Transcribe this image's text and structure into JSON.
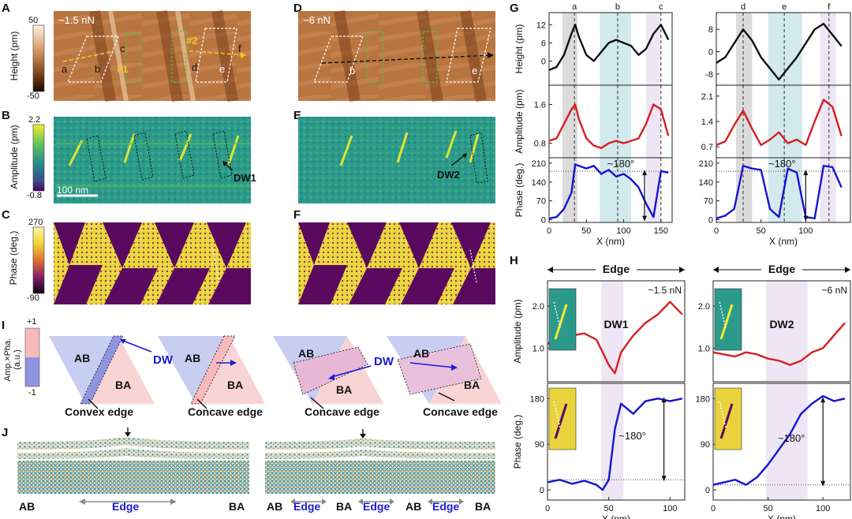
{
  "panels": {
    "A": "A",
    "B": "B",
    "C": "C",
    "D": "D",
    "E": "E",
    "F": "F",
    "G": "G",
    "H": "H",
    "I": "I",
    "J": "J"
  },
  "height_bar": {
    "title": "Height (pm)",
    "max": "50",
    "min": "-50"
  },
  "amplitude_bar": {
    "title": "Amplitude (pm)",
    "max": "2.2",
    "min": "-0.8"
  },
  "phase_bar": {
    "title": "Phase (deg.)",
    "max": "270",
    "min": "-90"
  },
  "afm": {
    "forceA": "~1.5 nN",
    "forceD": "~6 nN",
    "path1": "#1",
    "path2": "#2",
    "pts": {
      "a": "a",
      "b": "b",
      "c": "c",
      "d": "d",
      "e": "e",
      "f": "f"
    },
    "scale": "100 nm",
    "dw1": "DW1",
    "dw2": "DW2"
  },
  "schematic_I": {
    "ylabel": "Amp.×Pha. (a.u.)",
    "plus": "+1",
    "minus": "-1",
    "ab": "AB",
    "ba": "BA",
    "dw": "DW",
    "edges": [
      "Convex edge",
      "Concave edge",
      "Concave edge",
      "Concave edge"
    ]
  },
  "schematic_J": {
    "left": [
      "AB",
      "Edge",
      "BA"
    ],
    "right": [
      "AB",
      "Edge",
      "BA",
      "Edge",
      "AB",
      "Edge",
      "BA"
    ]
  },
  "chart_data": [
    {
      "type": "line",
      "panel": "G-left-height",
      "ylabel": "Height (pm)",
      "yticks": [
        "12",
        "6",
        "0"
      ],
      "top_labels": [
        "a",
        "b",
        "c"
      ],
      "x": [
        0,
        10,
        20,
        30,
        35,
        40,
        50,
        60,
        70,
        80,
        90,
        100,
        110,
        120,
        130,
        140,
        150,
        160
      ],
      "values": [
        -3,
        -2,
        2,
        9,
        12,
        8,
        2,
        0,
        3,
        6,
        7,
        6,
        5,
        2,
        4,
        9,
        12,
        7
      ]
    },
    {
      "type": "line",
      "panel": "G-left-amplitude",
      "ylabel": "Amplitude (pm)",
      "yticks": [
        "1.6",
        "0.8"
      ],
      "x": [
        0,
        10,
        20,
        30,
        35,
        40,
        50,
        60,
        70,
        80,
        90,
        100,
        110,
        120,
        130,
        140,
        150,
        160
      ],
      "values": [
        0.85,
        0.9,
        1.2,
        1.5,
        1.6,
        1.3,
        0.9,
        0.75,
        0.7,
        0.8,
        0.85,
        0.8,
        0.85,
        0.9,
        1.2,
        1.6,
        1.5,
        0.95
      ]
    },
    {
      "type": "line",
      "panel": "G-left-phase",
      "ylabel": "Phase (deg.)",
      "yticks": [
        "210",
        "140",
        "70",
        "0"
      ],
      "xlabel": "X (nm)",
      "xticks": [
        "0",
        "50",
        "100",
        "150"
      ],
      "annotation": "~180°",
      "x": [
        0,
        10,
        20,
        30,
        35,
        40,
        50,
        60,
        70,
        80,
        90,
        100,
        110,
        120,
        130,
        140,
        150,
        160
      ],
      "values": [
        5,
        10,
        40,
        100,
        205,
        200,
        190,
        200,
        170,
        185,
        160,
        170,
        150,
        120,
        60,
        10,
        180,
        175
      ]
    },
    {
      "type": "line",
      "panel": "G-right-height",
      "yticks": [
        "8",
        "0",
        "-8"
      ],
      "top_labels": [
        "d",
        "e",
        "f"
      ],
      "x": [
        0,
        10,
        20,
        30,
        40,
        50,
        60,
        70,
        80,
        90,
        100,
        110,
        120,
        130,
        140
      ],
      "values": [
        -4,
        -2,
        3,
        8,
        4,
        -2,
        -6,
        -10,
        -6,
        -2,
        3,
        8,
        10,
        6,
        2
      ]
    },
    {
      "type": "line",
      "panel": "G-right-amplitude",
      "yticks": [
        "2.1",
        "1.4",
        "0.7"
      ],
      "x": [
        0,
        10,
        20,
        30,
        40,
        50,
        60,
        70,
        80,
        90,
        100,
        110,
        120,
        130,
        140
      ],
      "values": [
        0.75,
        0.85,
        1.3,
        1.7,
        1.2,
        0.75,
        0.9,
        1.1,
        0.8,
        0.9,
        0.75,
        1.4,
        2.0,
        1.8,
        1.0
      ]
    },
    {
      "type": "line",
      "panel": "G-right-phase",
      "yticks": [
        "210",
        "140",
        "70",
        "0"
      ],
      "xlabel": "X (nm)",
      "xticks": [
        "0",
        "50",
        "100"
      ],
      "annotation": "~180°",
      "x": [
        0,
        10,
        20,
        30,
        40,
        50,
        60,
        70,
        80,
        90,
        100,
        110,
        120,
        130,
        140
      ],
      "values": [
        5,
        15,
        40,
        200,
        190,
        185,
        40,
        10,
        190,
        175,
        10,
        5,
        200,
        195,
        120
      ]
    },
    {
      "type": "line",
      "panel": "H-left-amplitude",
      "ylabel": "Amplitude (pm)",
      "yticks": [
        "2.0",
        "1.0"
      ],
      "header": "Edge",
      "force": "~1.5 nN",
      "region": "DW1",
      "x": [
        0,
        10,
        20,
        30,
        40,
        45,
        50,
        55,
        60,
        70,
        80,
        90,
        100,
        110
      ],
      "values": [
        1.1,
        1.25,
        1.3,
        1.35,
        1.2,
        0.9,
        0.6,
        0.4,
        0.9,
        1.3,
        1.6,
        1.8,
        2.1,
        1.8
      ]
    },
    {
      "type": "line",
      "panel": "H-left-phase",
      "ylabel": "Phase (deg.)",
      "yticks": [
        "180",
        "90",
        "0"
      ],
      "xlabel": "X (nm)",
      "xticks": [
        "0",
        "50",
        "100"
      ],
      "annotation": "~180°",
      "x": [
        0,
        10,
        20,
        30,
        40,
        45,
        50,
        55,
        60,
        70,
        80,
        90,
        100,
        110
      ],
      "values": [
        15,
        20,
        12,
        18,
        10,
        0,
        20,
        120,
        170,
        150,
        175,
        180,
        175,
        180
      ]
    },
    {
      "type": "line",
      "panel": "H-right-amplitude",
      "yticks": [
        "2.0",
        "1.0"
      ],
      "header": "Edge",
      "force": "~6 nN",
      "region": "DW2",
      "x": [
        0,
        10,
        20,
        30,
        40,
        50,
        60,
        70,
        80,
        90,
        100,
        110,
        120
      ],
      "values": [
        0.9,
        0.85,
        0.8,
        0.9,
        0.85,
        0.75,
        0.7,
        0.6,
        0.7,
        0.9,
        1.0,
        1.3,
        1.6
      ]
    },
    {
      "type": "line",
      "panel": "H-right-phase",
      "yticks": [
        "180",
        "90",
        "0"
      ],
      "xlabel": "X (nm)",
      "xticks": [
        "0",
        "50",
        "100"
      ],
      "annotation": "~180°",
      "x": [
        0,
        10,
        20,
        30,
        40,
        50,
        60,
        70,
        80,
        90,
        100,
        110,
        120
      ],
      "values": [
        10,
        15,
        20,
        10,
        25,
        50,
        80,
        110,
        150,
        170,
        185,
        175,
        180
      ]
    }
  ]
}
